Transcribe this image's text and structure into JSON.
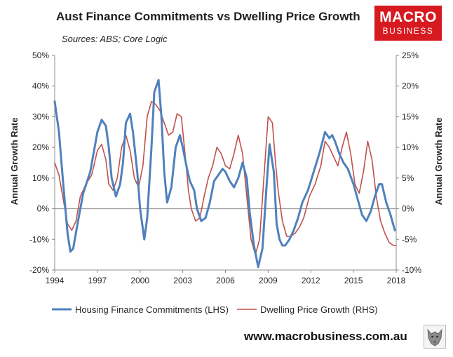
{
  "header": {
    "title": "Aust Finance Commitments vs Dwelling Price Growth",
    "sources": "Sources: ABS; Core Logic"
  },
  "logo": {
    "line1": "MACRO",
    "line2": "BUSINESS"
  },
  "footer": {
    "website": "www.macrobusiness.com.au"
  },
  "colors": {
    "blue": "#4f81bd",
    "red": "#c0504d",
    "logo_red": "#d71920"
  },
  "chart_data": {
    "type": "line",
    "title": "Aust Finance Commitments vs Dwelling Price Growth",
    "xlabel": "",
    "ylabel_left": "Annual Growth Rate",
    "ylabel_right": "Annual Growth Rate",
    "x_range": [
      1994,
      2018
    ],
    "xticks": [
      1994,
      1997,
      2000,
      2003,
      2006,
      2009,
      2012,
      2015,
      2018
    ],
    "xtick_labels": [
      "1994",
      "1997",
      "2000",
      "2003",
      "2006",
      "2009",
      "2012",
      "2015",
      "2018"
    ],
    "ylim_left": [
      -20,
      50
    ],
    "yticks_left": [
      -20,
      -10,
      0,
      10,
      20,
      30,
      40,
      50
    ],
    "ytick_labels_left": [
      "-20%",
      "-10%",
      "0%",
      "10%",
      "20%",
      "30%",
      "40%",
      "50%"
    ],
    "ylim_right": [
      -10,
      25
    ],
    "yticks_right": [
      -10,
      -5,
      0,
      5,
      10,
      15,
      20,
      25
    ],
    "ytick_labels_right": [
      "-10%",
      "-5%",
      "0%",
      "5%",
      "10%",
      "15%",
      "20%",
      "25%"
    ],
    "grid": false,
    "legend_position": "bottom",
    "series": [
      {
        "name": "Housing Finance Commitments (LHS)",
        "axis": "left",
        "color": "#4f81bd",
        "x": [
          1994.0,
          1994.3,
          1994.6,
          1994.9,
          1995.1,
          1995.3,
          1995.6,
          1996.0,
          1996.5,
          1997.0,
          1997.3,
          1997.6,
          1997.8,
          1998.0,
          1998.3,
          1998.6,
          1998.8,
          1999.0,
          1999.3,
          1999.5,
          1999.8,
          2000.0,
          2000.3,
          2000.5,
          2000.8,
          2001.0,
          2001.3,
          2001.5,
          2001.7,
          2001.9,
          2002.2,
          2002.5,
          2002.8,
          2003.0,
          2003.3,
          2003.5,
          2003.8,
          2004.0,
          2004.3,
          2004.6,
          2004.9,
          2005.2,
          2005.5,
          2005.8,
          2006.0,
          2006.3,
          2006.6,
          2006.9,
          2007.2,
          2007.5,
          2007.7,
          2008.0,
          2008.3,
          2008.6,
          2008.9,
          2009.1,
          2009.4,
          2009.6,
          2009.8,
          2010.0,
          2010.2,
          2010.5,
          2010.8,
          2011.1,
          2011.4,
          2011.8,
          2012.2,
          2012.6,
          2013.0,
          2013.3,
          2013.5,
          2013.7,
          2014.0,
          2014.3,
          2014.6,
          2015.0,
          2015.3,
          2015.6,
          2015.9,
          2016.2,
          2016.5,
          2016.8,
          2017.0,
          2017.3,
          2017.6,
          2017.9
        ],
        "values": [
          35,
          25,
          8,
          -8,
          -14,
          -13,
          -5,
          5,
          12,
          25,
          29,
          27,
          20,
          10,
          4,
          8,
          15,
          28,
          31,
          25,
          12,
          0,
          -10,
          -3,
          20,
          38,
          42,
          30,
          12,
          2,
          7,
          20,
          24,
          20,
          13,
          9,
          6,
          0,
          -4,
          -3,
          2,
          9,
          11,
          13,
          12,
          9,
          7,
          10,
          15,
          10,
          -1,
          -12,
          -19,
          -13,
          8,
          21,
          12,
          -5,
          -10,
          -12,
          -12,
          -10,
          -7,
          -3,
          2,
          6,
          12,
          18,
          25,
          23,
          24,
          22,
          18,
          15,
          13,
          8,
          3,
          -2,
          -4,
          -1,
          4,
          8,
          8,
          2,
          -2,
          -7
        ]
      },
      {
        "name": "Dwelling Price Growth (RHS)",
        "axis": "right",
        "color": "#c0504d",
        "x": [
          1994.0,
          1994.3,
          1994.6,
          1994.9,
          1995.2,
          1995.5,
          1995.8,
          1996.2,
          1996.6,
          1997.0,
          1997.3,
          1997.6,
          1997.8,
          1998.1,
          1998.4,
          1998.7,
          1999.0,
          1999.3,
          1999.6,
          1999.9,
          2000.2,
          2000.5,
          2000.8,
          2001.1,
          2001.4,
          2001.7,
          2002.0,
          2002.3,
          2002.6,
          2002.9,
          2003.2,
          2003.4,
          2003.6,
          2003.9,
          2004.2,
          2004.5,
          2004.8,
          2005.1,
          2005.4,
          2005.7,
          2006.0,
          2006.3,
          2006.6,
          2006.9,
          2007.2,
          2007.5,
          2007.8,
          2008.1,
          2008.4,
          2008.7,
          2009.0,
          2009.3,
          2009.5,
          2009.7,
          2010.0,
          2010.3,
          2010.6,
          2010.9,
          2011.2,
          2011.5,
          2011.9,
          2012.3,
          2012.7,
          2013.0,
          2013.3,
          2013.6,
          2013.9,
          2014.2,
          2014.5,
          2014.8,
          2015.1,
          2015.4,
          2015.7,
          2016.0,
          2016.3,
          2016.6,
          2016.9,
          2017.2,
          2017.5,
          2017.8,
          2018.0
        ],
        "values": [
          7.5,
          5.5,
          1.5,
          -2.5,
          -3.5,
          -2,
          2,
          4,
          5.5,
          9.5,
          10.5,
          8,
          4,
          3,
          5,
          10,
          12,
          9.5,
          5,
          3.5,
          7,
          15,
          17.5,
          17,
          16,
          14,
          12,
          12.5,
          15.5,
          15,
          8,
          3,
          0,
          -2,
          -1.5,
          2,
          5,
          7,
          10,
          9,
          7,
          6.5,
          9,
          12,
          9,
          2,
          -5,
          -7.5,
          -5,
          5,
          15,
          14,
          8,
          3,
          -2,
          -4.5,
          -4.5,
          -4,
          -3,
          -1.5,
          2,
          4,
          7,
          11,
          10,
          8.5,
          7,
          10,
          12.5,
          9,
          4,
          2.5,
          6,
          11,
          8,
          2,
          -2,
          -4,
          -5.5,
          -6,
          -6
        ]
      }
    ]
  }
}
